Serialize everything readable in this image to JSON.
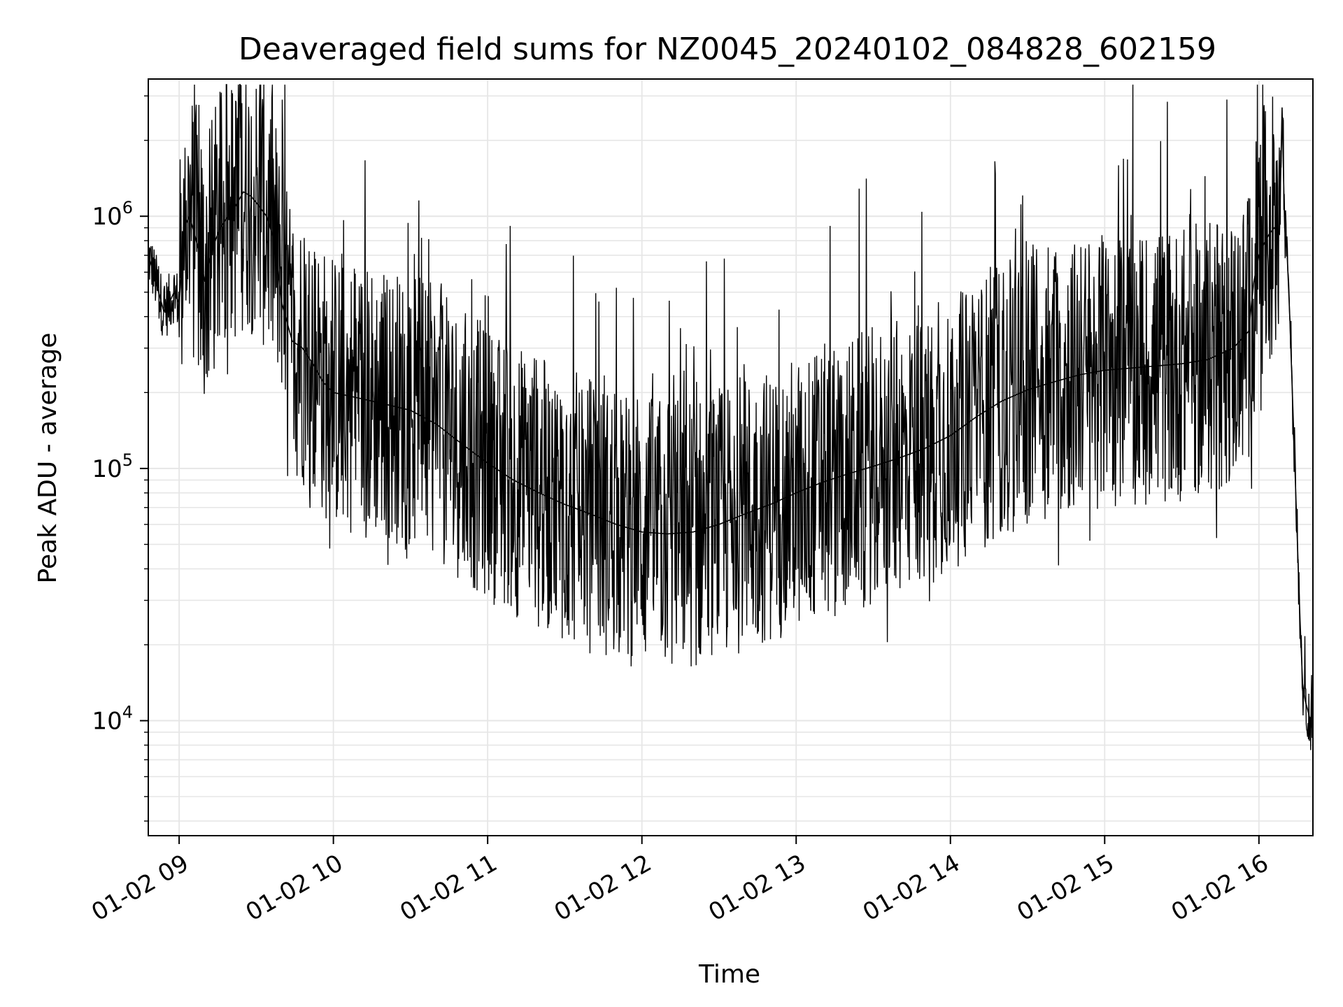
{
  "chart_data": {
    "type": "line",
    "title": "Deaveraged field sums for NZ0045_20240102_084828_602159",
    "xlabel": "Time",
    "ylabel": "Peak ADU - average",
    "yscale": "log",
    "ylim": [
      3500,
      3500000
    ],
    "xlim": [
      "2024-01-02 08:48",
      "2024-01-02 16:21"
    ],
    "grid": true,
    "line_color": "#000000",
    "x_ticks": [
      {
        "label": "01-02 09",
        "time": "2024-01-02 09:00"
      },
      {
        "label": "01-02 10",
        "time": "2024-01-02 10:00"
      },
      {
        "label": "01-02 11",
        "time": "2024-01-02 11:00"
      },
      {
        "label": "01-02 12",
        "time": "2024-01-02 12:00"
      },
      {
        "label": "01-02 13",
        "time": "2024-01-02 13:00"
      },
      {
        "label": "01-02 14",
        "time": "2024-01-02 14:00"
      },
      {
        "label": "01-02 15",
        "time": "2024-01-02 15:00"
      },
      {
        "label": "01-02 16",
        "time": "2024-01-02 16:00"
      }
    ],
    "y_ticks": [
      {
        "base": "10",
        "exp": "4",
        "value": 10000
      },
      {
        "base": "10",
        "exp": "5",
        "value": 100000
      },
      {
        "base": "10",
        "exp": "6",
        "value": 1000000
      }
    ],
    "series": [
      {
        "points": [
          [
            "2024-01-02 08:48",
            700000
          ],
          [
            "2024-01-02 08:50",
            600000
          ],
          [
            "2024-01-02 08:52",
            500000
          ],
          [
            "2024-01-02 08:54",
            420000
          ],
          [
            "2024-01-02 08:56",
            450000
          ],
          [
            "2024-01-02 08:58",
            500000
          ],
          [
            "2024-01-02 09:00",
            450000
          ],
          [
            "2024-01-02 09:02",
            900000
          ],
          [
            "2024-01-02 09:04",
            1000000
          ],
          [
            "2024-01-02 09:06",
            850000
          ],
          [
            "2024-01-02 09:08",
            700000
          ],
          [
            "2024-01-02 09:10",
            550000
          ],
          [
            "2024-01-02 09:13",
            750000
          ],
          [
            "2024-01-02 09:16",
            900000
          ],
          [
            "2024-01-02 09:19",
            1000000
          ],
          [
            "2024-01-02 09:22",
            1100000
          ],
          [
            "2024-01-02 09:25",
            1250000
          ],
          [
            "2024-01-02 09:28",
            1200000
          ],
          [
            "2024-01-02 09:31",
            1100000
          ],
          [
            "2024-01-02 09:34",
            1000000
          ],
          [
            "2024-01-02 09:37",
            800000
          ],
          [
            "2024-01-02 09:40",
            450000
          ],
          [
            "2024-01-02 09:44",
            320000
          ],
          [
            "2024-01-02 09:48",
            300000
          ],
          [
            "2024-01-02 09:52",
            260000
          ],
          [
            "2024-01-02 09:56",
            220000
          ],
          [
            "2024-01-02 10:00",
            200000
          ],
          [
            "2024-01-02 10:10",
            190000
          ],
          [
            "2024-01-02 10:20",
            180000
          ],
          [
            "2024-01-02 10:30",
            170000
          ],
          [
            "2024-01-02 10:40",
            150000
          ],
          [
            "2024-01-02 10:50",
            125000
          ],
          [
            "2024-01-02 11:00",
            105000
          ],
          [
            "2024-01-02 11:10",
            90000
          ],
          [
            "2024-01-02 11:20",
            80000
          ],
          [
            "2024-01-02 11:30",
            72000
          ],
          [
            "2024-01-02 11:40",
            66000
          ],
          [
            "2024-01-02 11:50",
            60000
          ],
          [
            "2024-01-02 12:00",
            56000
          ],
          [
            "2024-01-02 12:10",
            55000
          ],
          [
            "2024-01-02 12:20",
            56000
          ],
          [
            "2024-01-02 12:30",
            60000
          ],
          [
            "2024-01-02 12:40",
            66000
          ],
          [
            "2024-01-02 12:50",
            72000
          ],
          [
            "2024-01-02 13:00",
            80000
          ],
          [
            "2024-01-02 13:10",
            88000
          ],
          [
            "2024-01-02 13:20",
            95000
          ],
          [
            "2024-01-02 13:30",
            102000
          ],
          [
            "2024-01-02 13:40",
            110000
          ],
          [
            "2024-01-02 13:50",
            120000
          ],
          [
            "2024-01-02 14:00",
            135000
          ],
          [
            "2024-01-02 14:10",
            160000
          ],
          [
            "2024-01-02 14:20",
            185000
          ],
          [
            "2024-01-02 14:30",
            205000
          ],
          [
            "2024-01-02 14:40",
            220000
          ],
          [
            "2024-01-02 14:50",
            235000
          ],
          [
            "2024-01-02 15:00",
            245000
          ],
          [
            "2024-01-02 15:10",
            250000
          ],
          [
            "2024-01-02 15:20",
            255000
          ],
          [
            "2024-01-02 15:30",
            260000
          ],
          [
            "2024-01-02 15:40",
            270000
          ],
          [
            "2024-01-02 15:50",
            300000
          ],
          [
            "2024-01-02 15:56",
            350000
          ],
          [
            "2024-01-02 15:58",
            550000
          ],
          [
            "2024-01-02 16:00",
            700000
          ],
          [
            "2024-01-02 16:02",
            780000
          ],
          [
            "2024-01-02 16:04",
            850000
          ],
          [
            "2024-01-02 16:06",
            900000
          ],
          [
            "2024-01-02 16:08",
            850000
          ],
          [
            "2024-01-02 16:09",
            2700000
          ],
          [
            "2024-01-02 16:10",
            900000
          ],
          [
            "2024-01-02 16:11",
            700000
          ],
          [
            "2024-01-02 16:12",
            400000
          ],
          [
            "2024-01-02 16:13",
            200000
          ],
          [
            "2024-01-02 16:14",
            100000
          ],
          [
            "2024-01-02 16:15",
            50000
          ],
          [
            "2024-01-02 16:16",
            25000
          ],
          [
            "2024-01-02 16:17",
            14000
          ],
          [
            "2024-01-02 16:18",
            12000
          ],
          [
            "2024-01-02 16:19",
            11000
          ],
          [
            "2024-01-02 16:20",
            10000
          ],
          [
            "2024-01-02 16:21",
            9000
          ]
        ]
      }
    ]
  }
}
